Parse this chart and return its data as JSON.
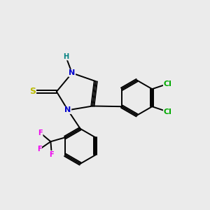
{
  "background_color": "#ebebeb",
  "bond_color": "#000000",
  "atom_colors": {
    "N": "#0000cc",
    "S": "#bbbb00",
    "Cl": "#00aa00",
    "F": "#ee00ee",
    "H": "#008080",
    "C": "#000000"
  },
  "font_size_atoms": 8,
  "figsize": [
    3.0,
    3.0
  ],
  "dpi": 100
}
